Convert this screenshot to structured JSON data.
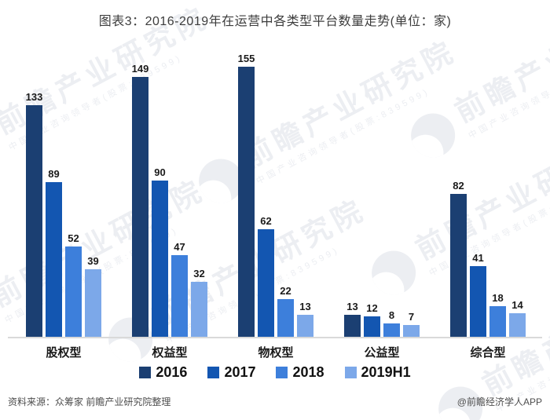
{
  "title": "图表3：2016-2019年在运营中各类型平台数量走势(单位：家)",
  "chart_data": {
    "type": "bar",
    "title": "图表3：2016-2019年在运营中各类型平台数量走势(单位：家)",
    "categories": [
      "股权型",
      "权益型",
      "物权型",
      "公益型",
      "综合型"
    ],
    "series": [
      {
        "name": "2016",
        "color": "#1B3F72",
        "values": [
          133,
          149,
          155,
          13,
          82
        ]
      },
      {
        "name": "2017",
        "color": "#1356B1",
        "values": [
          89,
          90,
          62,
          12,
          41
        ]
      },
      {
        "name": "2018",
        "color": "#3D7FDB",
        "values": [
          52,
          47,
          22,
          8,
          18
        ]
      },
      {
        "name": "2019H1",
        "color": "#7CA8E9",
        "values": [
          39,
          32,
          13,
          7,
          14
        ]
      }
    ],
    "xlabel": "",
    "ylabel": "",
    "ylim": [
      0,
      155
    ],
    "grid": false,
    "value_labels": true,
    "legend_position": "bottom",
    "axis_line_color": "#d9d9d9"
  },
  "footer": {
    "source": "资料来源：众筹家 前瞻产业研究院整理",
    "credit": "@前瞻经济学人APP"
  },
  "watermark": {
    "text": "前瞻产业研究院",
    "subtext": "中国产业咨询领导者(股票:839599)",
    "color": "#eceef2"
  }
}
